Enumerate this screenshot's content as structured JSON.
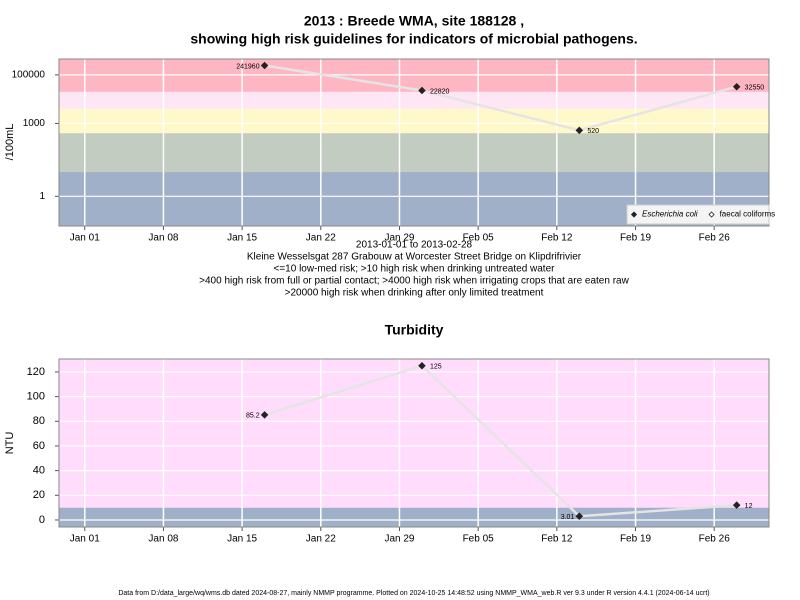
{
  "chart_data": [
    {
      "type": "line",
      "title": [
        "2013 : Breede WMA, site 188128 ,",
        "showing high risk guidelines for indicators of microbial pathogens."
      ],
      "y_label": "/100mL",
      "log_y": true,
      "ylim": [
        0.06,
        450000
      ],
      "yticks": [
        1,
        1000,
        100000
      ],
      "xlim": [
        "2012-12-29T17:00:00Z",
        "2013-03-02T21:00:00Z"
      ],
      "xticks": [
        {
          "value": "2013-01-01",
          "label": "Jan 01"
        },
        {
          "value": "2013-01-08",
          "label": "Jan 08"
        },
        {
          "value": "2013-01-15",
          "label": "Jan 15"
        },
        {
          "value": "2013-01-22",
          "label": "Jan 22"
        },
        {
          "value": "2013-01-29",
          "label": "Jan 29"
        },
        {
          "value": "2013-02-05",
          "label": "Feb 05"
        },
        {
          "value": "2013-02-12",
          "label": "Feb 12"
        },
        {
          "value": "2013-02-19",
          "label": "Feb 19"
        },
        {
          "value": "2013-02-26",
          "label": "Feb 26"
        }
      ],
      "grid": true,
      "thresholds": [
        10,
        400,
        4000,
        20000
      ],
      "band_colors": [
        "#a0b0c8",
        "#c2ccc0",
        "#fff8c8",
        "#ffe6f4",
        "#ffb6c3"
      ],
      "line_color": "#e4e4e4",
      "x": [
        "2013-01-17",
        "2013-01-31",
        "2013-02-14",
        "2013-02-28"
      ],
      "series": [
        {
          "name": "Escherichia coli",
          "color": "#222222",
          "marker": "filled",
          "values": [
            241960,
            22820,
            520,
            32550
          ]
        },
        {
          "name": "faecal coliforms",
          "color": "#222222",
          "marker": "open",
          "values": [
            null,
            null,
            null,
            null
          ]
        }
      ],
      "legend": "bottom right",
      "notes": [
        "2013-01-01 to 2013-02-28",
        "Kleine Wesselsgat 287 Grabouw at Worcester Street Bridge on Klipdrifrivier",
        "<=10 low-med risk; >10 high risk when drinking untreated water",
        ">400 high risk from full or partial contact; >4000 high risk when irrigating crops that are eaten raw",
        ">20000 high risk when drinking after only limited treatment"
      ]
    },
    {
      "type": "line",
      "title": "Turbidity",
      "y_label": "NTU",
      "log_y": false,
      "ylim": [
        -5.7,
        130.5
      ],
      "yticks": [
        0,
        20,
        40,
        60,
        80,
        100,
        120
      ],
      "xlim": [
        "2012-12-29T17:00:00Z",
        "2013-03-02T21:00:00Z"
      ],
      "xticks": [
        {
          "value": "2013-01-01",
          "label": "Jan 01"
        },
        {
          "value": "2013-01-08",
          "label": "Jan 08"
        },
        {
          "value": "2013-01-15",
          "label": "Jan 15"
        },
        {
          "value": "2013-01-22",
          "label": "Jan 22"
        },
        {
          "value": "2013-01-29",
          "label": "Jan 29"
        },
        {
          "value": "2013-02-05",
          "label": "Feb 05"
        },
        {
          "value": "2013-02-12",
          "label": "Feb 12"
        },
        {
          "value": "2013-02-19",
          "label": "Feb 19"
        },
        {
          "value": "2013-02-26",
          "label": "Feb 26"
        }
      ],
      "grid": true,
      "thresholds": [
        10
      ],
      "band_colors": [
        "#a0b0c8",
        "#ffdcfc"
      ],
      "line_color": "#e4e4e4",
      "color": "#222222",
      "x": [
        "2013-01-17",
        "2013-01-31",
        "2013-02-14",
        "2013-02-28"
      ],
      "values": [
        85.2,
        125,
        3.01,
        12
      ]
    }
  ],
  "footer": "Data from D:/data_large/wq/wms.db dated 2024-08-27, mainly NMMP programme. Plotted on 2024-10-25 14:48:52 using NMMP_WMA_web.R ver 9.3 under R version 4.4.1 (2024-06-14 ucrt)"
}
